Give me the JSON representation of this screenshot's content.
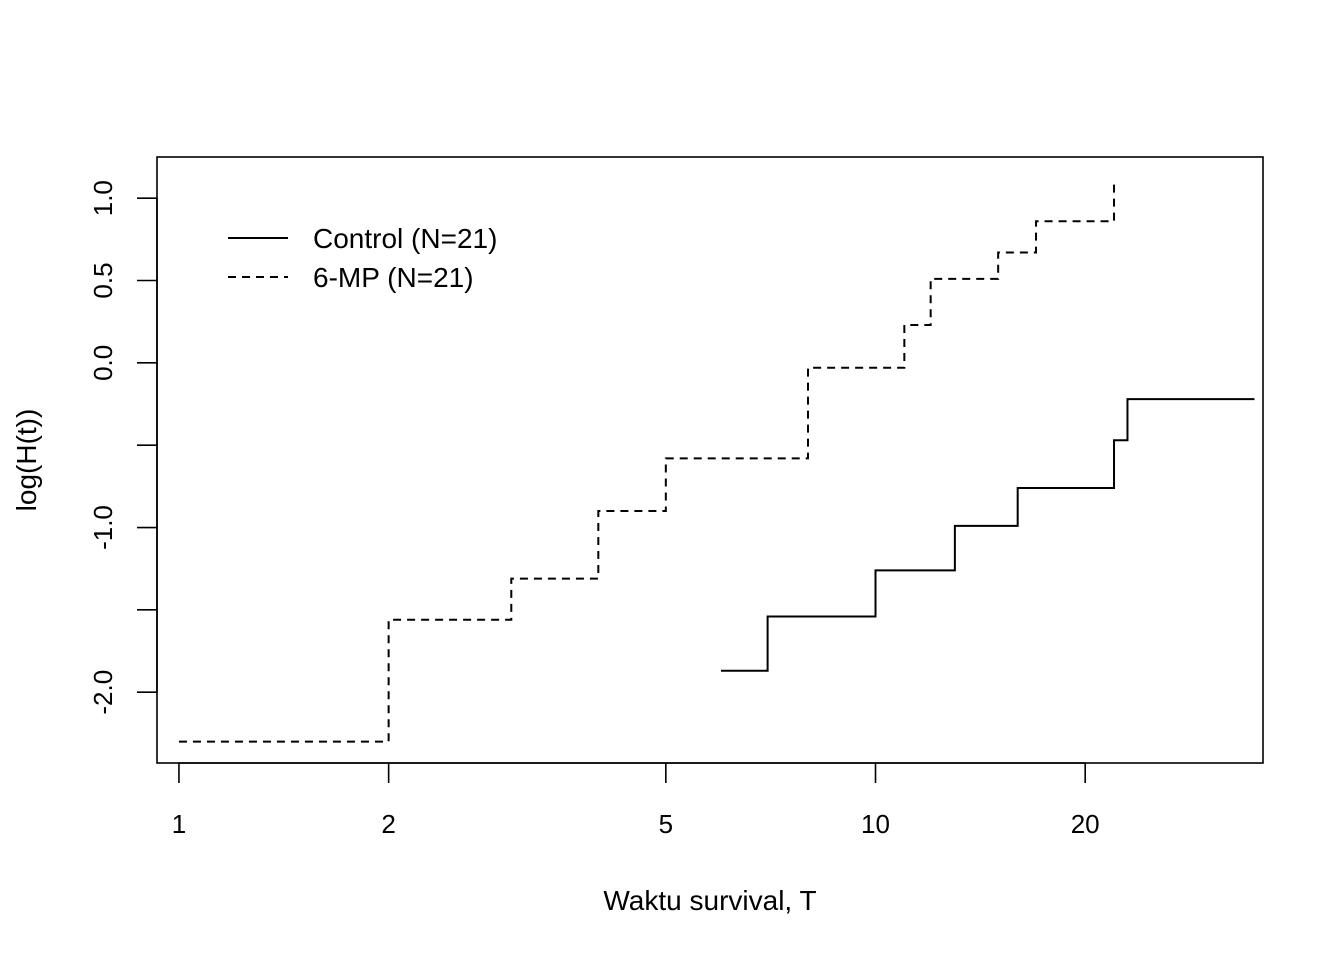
{
  "chart_data": {
    "type": "line",
    "title": "",
    "xlabel": "Waktu survival, T",
    "ylabel": "log(H(t))",
    "x_scale": "log",
    "xlim": [
      0.93,
      36
    ],
    "ylim": [
      -2.43,
      1.25
    ],
    "x_ticks": [
      1,
      2,
      5,
      10,
      20
    ],
    "x_tick_labels": [
      "1",
      "2",
      "5",
      "10",
      "20"
    ],
    "y_ticks": [
      -2.0,
      -1.5,
      -1.0,
      -0.5,
      0.0,
      0.5,
      1.0
    ],
    "y_tick_labels": [
      "-2.0",
      "",
      "-1.0",
      "",
      "0.0",
      "0.5",
      "1.0"
    ],
    "grid": false,
    "legend_position": "top-left",
    "series": [
      {
        "name": "Control (N=21)",
        "line_style": "solid",
        "color": "#000000",
        "steps": [
          {
            "x": 6,
            "y": -1.87
          },
          {
            "x": 7,
            "y": -1.54
          },
          {
            "x": 10,
            "y": -1.26
          },
          {
            "x": 13,
            "y": -0.99
          },
          {
            "x": 16,
            "y": -0.76
          },
          {
            "x": 22,
            "y": -0.47
          },
          {
            "x": 23,
            "y": -0.22
          },
          {
            "x": 35,
            "y": -0.22
          }
        ]
      },
      {
        "name": "6-MP (N=21)",
        "line_style": "dashed",
        "color": "#000000",
        "steps": [
          {
            "x": 1,
            "y": -2.3
          },
          {
            "x": 2,
            "y": -1.56
          },
          {
            "x": 3,
            "y": -1.31
          },
          {
            "x": 4,
            "y": -0.9
          },
          {
            "x": 5,
            "y": -0.58
          },
          {
            "x": 8,
            "y": -0.03
          },
          {
            "x": 11,
            "y": 0.23
          },
          {
            "x": 12,
            "y": 0.51
          },
          {
            "x": 15,
            "y": 0.67
          },
          {
            "x": 17,
            "y": 0.86
          },
          {
            "x": 22,
            "y": 1.1
          }
        ]
      }
    ]
  }
}
